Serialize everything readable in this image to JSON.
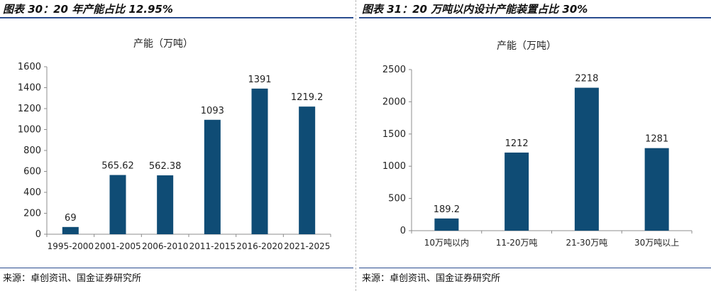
{
  "colors": {
    "bar": "#0f4c75",
    "title_rule": "#2a4d8f",
    "axis": "#8c8c8c"
  },
  "panels": [
    {
      "title": "图表 30：20 年产能占比 12.95%",
      "source": "来源：卓创资讯、国金证券研究所"
    },
    {
      "title": "图表 31：20 万吨以内设计产能装置占比 30%",
      "source": "来源：卓创资讯、国金证券研究所"
    }
  ],
  "chart_data": [
    {
      "type": "bar",
      "title": "产能（万吨）",
      "xlabel": "",
      "ylabel": "",
      "categories": [
        "1995-2000",
        "2001-2005",
        "2006-2010",
        "2011-2015",
        "2016-2020",
        "2021-2025"
      ],
      "values": [
        69,
        565.62,
        562.38,
        1093,
        1391,
        1219.2
      ],
      "value_labels": [
        "69",
        "565.62",
        "562.38",
        "1093",
        "1391",
        "1219.2"
      ],
      "ylim": [
        0,
        1600
      ],
      "yticks": [
        0,
        200,
        400,
        600,
        800,
        1000,
        1200,
        1400,
        1600
      ],
      "grid": false,
      "legend": "none"
    },
    {
      "type": "bar",
      "title": "产能（万吨）",
      "xlabel": "",
      "ylabel": "",
      "categories": [
        "10万吨以内",
        "11-20万吨",
        "21-30万吨",
        "30万吨以上"
      ],
      "values": [
        189.2,
        1212,
        2218,
        1281
      ],
      "value_labels": [
        "189.2",
        "1212",
        "2218",
        "1281"
      ],
      "ylim": [
        0,
        2500
      ],
      "yticks": [
        0,
        500,
        1000,
        1500,
        2000,
        2500
      ],
      "grid": false,
      "legend": "none"
    }
  ]
}
